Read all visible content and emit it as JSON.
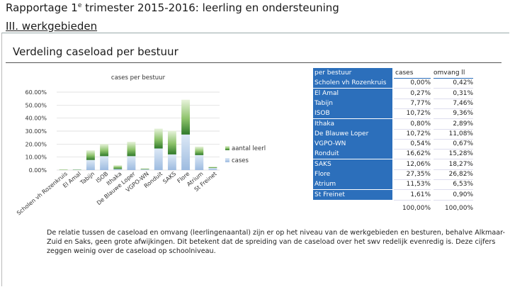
{
  "page": {
    "title_main": "Rapportage 1",
    "title_sup": "e",
    "title_rest": " trimester 2015-2016: leerling en ondersteuning",
    "subtitle": "III. werkgebieden",
    "panel_title": "Verdeling caseload per bestuur",
    "note": "De relatie tussen de caseload en omvang (leerlingenaantal) zijn er op het niveau van de werkgebieden en besturen, behalve Alkmaar-Zuid en Saks, geen grote afwijkingen. Dit betekent dat de spreiding van de caseload over het swv redelijk evenredig is. Deze cijfers zeggen weinig over de caseload op schoolniveau."
  },
  "colors": {
    "aantal_leerl": "#5e9e3e",
    "cases": "#9dbbe0",
    "table_header": "#2c6fbb"
  },
  "chart_data": {
    "type": "bar",
    "title": "cases per bestuur",
    "categories": [
      "Scholen vh Rozenkruis",
      "El Amal",
      "Tabijn",
      "ISOB",
      "Ithaka",
      "De Blauwe Loper",
      "VGPO-WN",
      "Ronduit",
      "SAKS",
      "Flore",
      "Atrium",
      "St Freinet"
    ],
    "series": [
      {
        "name": "aantal leerl",
        "values": [
          0.42,
          0.31,
          7.46,
          9.36,
          2.89,
          11.08,
          0.67,
          15.28,
          18.27,
          26.82,
          6.53,
          0.9
        ]
      },
      {
        "name": "cases",
        "values": [
          0.0,
          0.27,
          7.77,
          10.72,
          0.8,
          10.72,
          0.54,
          16.62,
          12.06,
          27.35,
          11.53,
          1.61
        ]
      }
    ],
    "stacked": true,
    "ylim": [
      0,
      60
    ],
    "yticks": [
      "0.00%",
      "10.00%",
      "20.00%",
      "30.00%",
      "40.00%",
      "50.00%",
      "60.00%"
    ],
    "legend": [
      "aantal leerl",
      "cases"
    ],
    "legend_position": "right"
  },
  "table": {
    "headers": [
      "per bestuur",
      "cases",
      "omvang ll"
    ],
    "rows": [
      [
        "Scholen vh Rozenkruis",
        "0,00%",
        "0,42%"
      ],
      [
        "El Amal",
        "0,27%",
        "0,31%"
      ],
      [
        "Tabijn",
        "7,77%",
        "7,46%"
      ],
      [
        "ISOB",
        "10,72%",
        "9,36%"
      ],
      [
        "Ithaka",
        "0,80%",
        "2,89%"
      ],
      [
        "De Blauwe Loper",
        "10,72%",
        "11,08%"
      ],
      [
        "VGPO-WN",
        "0,54%",
        "0,67%"
      ],
      [
        "Ronduit",
        "16,62%",
        "15,28%"
      ],
      [
        "SAKS",
        "12,06%",
        "18,27%"
      ],
      [
        "Flore",
        "27,35%",
        "26,82%"
      ],
      [
        "Atrium",
        "11,53%",
        "6,53%"
      ],
      [
        "St Freinet",
        "1,61%",
        "0,90%"
      ]
    ],
    "totals": [
      "",
      "100,00%",
      "100,00%"
    ]
  }
}
